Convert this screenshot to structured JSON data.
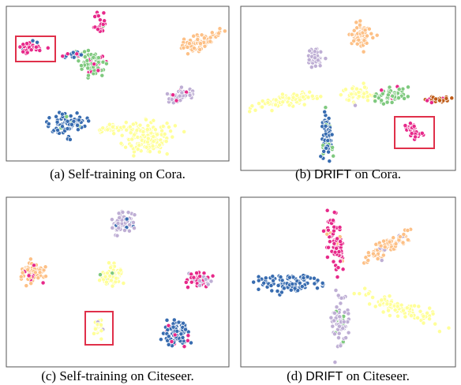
{
  "figures": [
    {
      "label": "(a)",
      "method": "Self-training",
      "dataset": "on Cora."
    },
    {
      "label": "(b)",
      "method": "DRIFT",
      "dataset": "on Cora."
    },
    {
      "label": "(c)",
      "method": "Self-training",
      "dataset": "on Citeseer."
    },
    {
      "label": "(d)",
      "method": "DRIFT",
      "dataset": "on Citeseer."
    }
  ]
}
